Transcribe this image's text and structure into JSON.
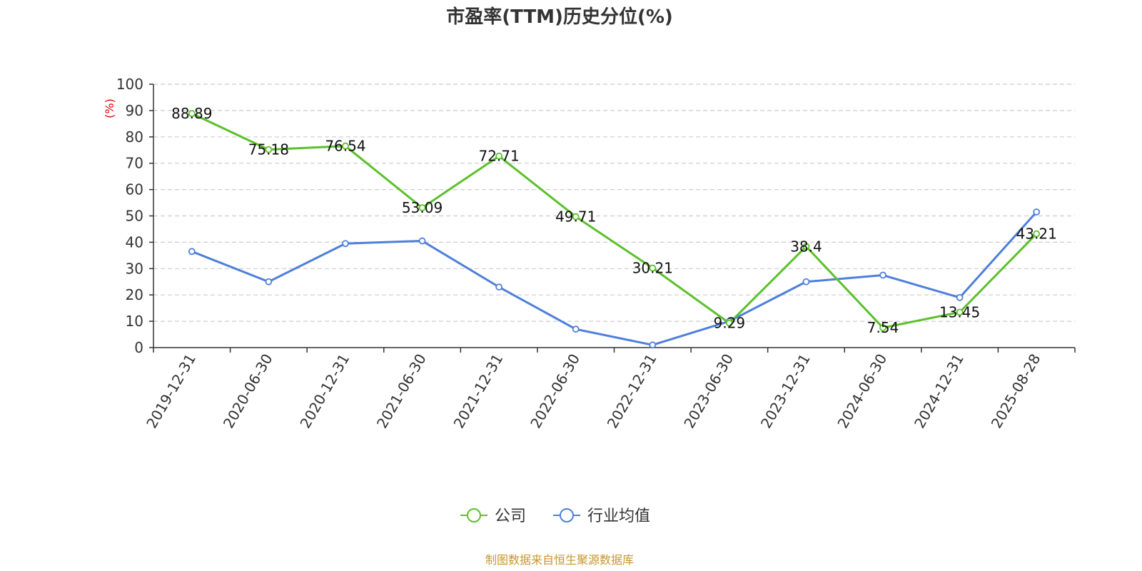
{
  "chart_data": {
    "type": "line",
    "title": "市盈率(TTM)历史分位(%)",
    "ylabel": "(%)",
    "ylim": [
      0,
      100
    ],
    "yticks": [
      0,
      10,
      20,
      30,
      40,
      50,
      60,
      70,
      80,
      90,
      100
    ],
    "categories": [
      "2019-12-31",
      "2020-06-30",
      "2020-12-31",
      "2021-06-30",
      "2021-12-31",
      "2022-06-30",
      "2022-12-31",
      "2023-06-30",
      "2023-12-31",
      "2024-06-30",
      "2024-12-31",
      "2025-08-28"
    ],
    "series": [
      {
        "name": "公司",
        "color": "#5cc02b",
        "values": [
          88.89,
          75.18,
          76.54,
          53.09,
          72.71,
          49.71,
          30.21,
          9.29,
          38.4,
          7.54,
          13.45,
          43.21
        ],
        "labels": [
          "88.89",
          "75.18",
          "76.54",
          "53.09",
          "72.71",
          "49.71",
          "30.21",
          "9.29",
          "38.4",
          "7.54",
          "13.45",
          "43.21"
        ]
      },
      {
        "name": "行业均值",
        "color": "#4e7fdb",
        "values": [
          36.5,
          25.0,
          39.5,
          40.5,
          23.0,
          7.0,
          1.0,
          10.0,
          25.0,
          27.5,
          19.0,
          51.5
        ]
      }
    ],
    "grid": true,
    "legend": "bottom-center",
    "source": "制图数据来自恒生聚源数据库"
  }
}
